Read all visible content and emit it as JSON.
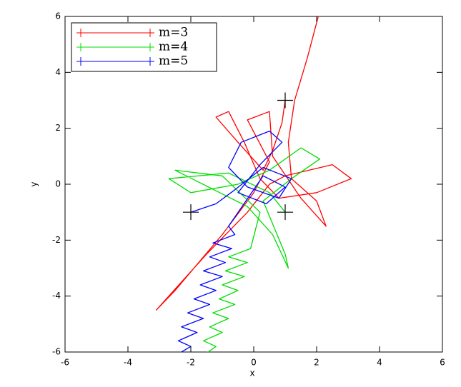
{
  "chart_data": {
    "type": "line",
    "xlabel": "x",
    "ylabel": "y",
    "xlim": [
      -6,
      6
    ],
    "ylim": [
      -6,
      6
    ],
    "xticks": [
      -6,
      -4,
      -2,
      0,
      2,
      4,
      6
    ],
    "yticks": [
      -6,
      -4,
      -2,
      0,
      2,
      4,
      6
    ],
    "legend": "upper left",
    "series": [
      {
        "name": "m=3",
        "color": "#ff0000",
        "x": [
          1,
          0.9,
          0.6,
          0.3,
          -0.5,
          -1.2,
          -0.8,
          -0.3,
          0.2,
          0.8,
          2.0,
          3.1,
          2.5,
          1.0,
          0.5,
          -0.2,
          -1.5,
          -3.1,
          -2.5,
          -1.0,
          0,
          0.5,
          -0.2,
          0.5,
          0.6,
          1.5,
          2.3,
          2.0,
          1.2,
          1.1,
          1.3,
          1.7,
          2.1
        ],
        "values": [
          3,
          2.2,
          1.2,
          0.5,
          1.5,
          2.4,
          2.6,
          1.5,
          0.2,
          -0.5,
          -0.3,
          0.2,
          0.7,
          0.3,
          0,
          -1.0,
          -2.5,
          -4.5,
          -3.8,
          -1.8,
          -0.3,
          0.8,
          2.3,
          2.6,
          1.0,
          -0.5,
          -1.5,
          -0.6,
          0.2,
          1.5,
          3.0,
          4.5,
          6.2
        ]
      },
      {
        "name": "m=4",
        "color": "#00dd00",
        "x": [
          1,
          0.5,
          -0.8,
          -2.7,
          -2.0,
          -0.5,
          0.5,
          1.5,
          2.1,
          1.2,
          0.3,
          1.0,
          1.1,
          0.6,
          -0.2,
          -2.5,
          -1.0,
          0.2,
          -0.1,
          -0.8,
          -0.2,
          -0.9,
          -0.3,
          -1.0,
          -0.5,
          -1.1,
          -0.6,
          -1.3,
          -0.8,
          -1.4,
          -1.0,
          -1.6,
          -1.2,
          -1.7
        ],
        "values": [
          -1,
          -0.3,
          0.4,
          0.2,
          -0.3,
          0,
          0.5,
          1.3,
          0.9,
          0.2,
          -0.6,
          -2.5,
          -3.0,
          -1.8,
          -0.8,
          0.5,
          0.3,
          -1.0,
          -2.3,
          -2.6,
          -2.8,
          -3.1,
          -3.3,
          -3.6,
          -3.8,
          -4.1,
          -4.3,
          -4.6,
          -4.8,
          -5.1,
          -5.3,
          -5.6,
          -5.8,
          -6.2
        ]
      },
      {
        "name": "m=5",
        "color": "#0000ff",
        "x": [
          -2,
          -1.2,
          -0.6,
          0.3,
          1.2,
          0.8,
          -0.2,
          -0.8,
          -0.4,
          0.5,
          0.9,
          0.2,
          -0.5,
          0.4,
          1.0,
          0.3,
          -0.8,
          -0.6,
          -1.3,
          -0.7,
          -1.4,
          -0.9,
          -1.6,
          -1.0,
          -1.7,
          -1.2,
          -1.9,
          -1.4,
          -2.1,
          -1.6,
          -2.3,
          -1.8,
          -2.4,
          -2.0,
          -2.6
        ],
        "values": [
          -1,
          -0.7,
          -0.2,
          0.6,
          0.2,
          -0.5,
          -0.1,
          0.6,
          1.5,
          1.9,
          1.5,
          0.7,
          -0.3,
          -0.7,
          -0.1,
          0.3,
          -1.5,
          -1.8,
          -2.1,
          -2.3,
          -2.6,
          -2.8,
          -3.1,
          -3.3,
          -3.6,
          -3.8,
          -4.1,
          -4.3,
          -4.6,
          -4.8,
          -5.1,
          -5.3,
          -5.6,
          -5.8,
          -6.2
        ]
      }
    ],
    "markers": {
      "x": [
        1,
        -2,
        1
      ],
      "values": [
        3,
        -1,
        -1
      ],
      "color": "#000000"
    }
  }
}
